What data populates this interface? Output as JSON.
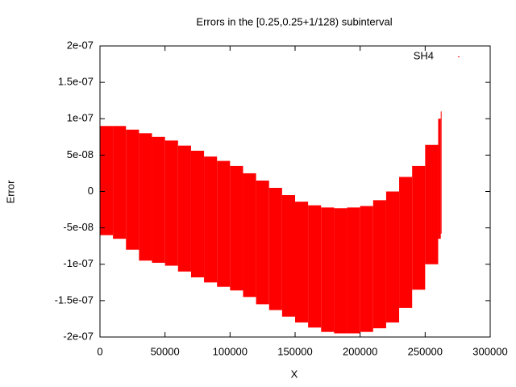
{
  "chart_data": {
    "type": "range",
    "title": "Errors in the [0.25,0.25+1/128) subinterval",
    "xlabel": "X",
    "ylabel": "Error",
    "x": [
      0,
      10000,
      20000,
      30000,
      40000,
      50000,
      60000,
      70000,
      80000,
      90000,
      100000,
      110000,
      120000,
      130000,
      140000,
      150000,
      160000,
      170000,
      180000,
      190000,
      200000,
      210000,
      220000,
      230000,
      240000,
      250000,
      260000,
      262000
    ],
    "series": [
      {
        "name": "SH4",
        "color": "#ff0000",
        "upper": [
          9e-08,
          9e-08,
          8.5e-08,
          8e-08,
          7.5e-08,
          7e-08,
          6.3e-08,
          5.6e-08,
          4.8e-08,
          4.2e-08,
          3.5e-08,
          2.5e-08,
          1.5e-08,
          5e-09,
          -5e-09,
          -1.4e-08,
          -1.9e-08,
          -2.2e-08,
          -2.3e-08,
          -2.2e-08,
          -2e-08,
          -1.2e-08,
          0,
          2e-08,
          3.5e-08,
          6.4e-08,
          1e-07,
          1.1e-07
        ],
        "lower": [
          -6e-08,
          -6.5e-08,
          -8e-08,
          -9.5e-08,
          -9.8e-08,
          -1.02e-07,
          -1.1e-07,
          -1.18e-07,
          -1.25e-07,
          -1.31e-07,
          -1.36e-07,
          -1.45e-07,
          -1.55e-07,
          -1.63e-07,
          -1.72e-07,
          -1.8e-07,
          -1.87e-07,
          -1.93e-07,
          -1.95e-07,
          -1.95e-07,
          -1.93e-07,
          -1.88e-07,
          -1.8e-07,
          -1.6e-07,
          -1.35e-07,
          -1e-07,
          -6.5e-08,
          -5.8e-08
        ]
      }
    ],
    "xlim": [
      0,
      300000
    ],
    "xticks": [
      0,
      50000,
      100000,
      150000,
      200000,
      250000,
      300000
    ],
    "ylim": [
      -2e-07,
      2e-07
    ],
    "yticks": [
      {
        "value": -2e-07,
        "label": "-2e-07"
      },
      {
        "value": -1.5e-07,
        "label": "-1.5e-07"
      },
      {
        "value": -1e-07,
        "label": "-1e-07"
      },
      {
        "value": -5e-08,
        "label": "-5e-08"
      },
      0,
      {
        "value": 5e-08,
        "label": "5e-08"
      },
      {
        "value": 1e-07,
        "label": "1e-07"
      },
      {
        "value": 1.5e-07,
        "label": "1.5e-07"
      },
      {
        "value": 2e-07,
        "label": "2e-07"
      }
    ],
    "legend": "top-right"
  }
}
